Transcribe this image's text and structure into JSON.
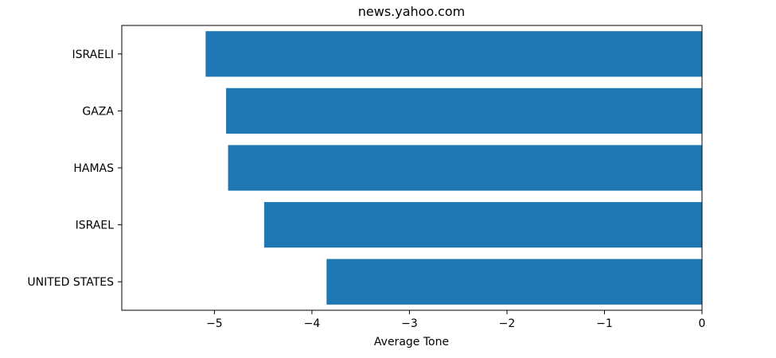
{
  "chart_data": {
    "type": "bar",
    "orientation": "horizontal",
    "title": "news.yahoo.com",
    "xlabel": "Average Tone",
    "ylabel": "",
    "categories": [
      "UNITED STATES",
      "ISRAEL",
      "HAMAS",
      "GAZA",
      "ISRAELI"
    ],
    "values": [
      -3.85,
      -4.49,
      -4.86,
      -4.88,
      -5.09
    ],
    "xlim": [
      -5.95,
      0
    ],
    "xticks": [
      -5,
      -4,
      -3,
      -2,
      -1,
      0
    ],
    "xtick_labels": [
      "−5",
      "−4",
      "−3",
      "−2",
      "−1",
      "0"
    ],
    "bar_color": "#1f77b4",
    "grid": false,
    "legend": "none"
  }
}
